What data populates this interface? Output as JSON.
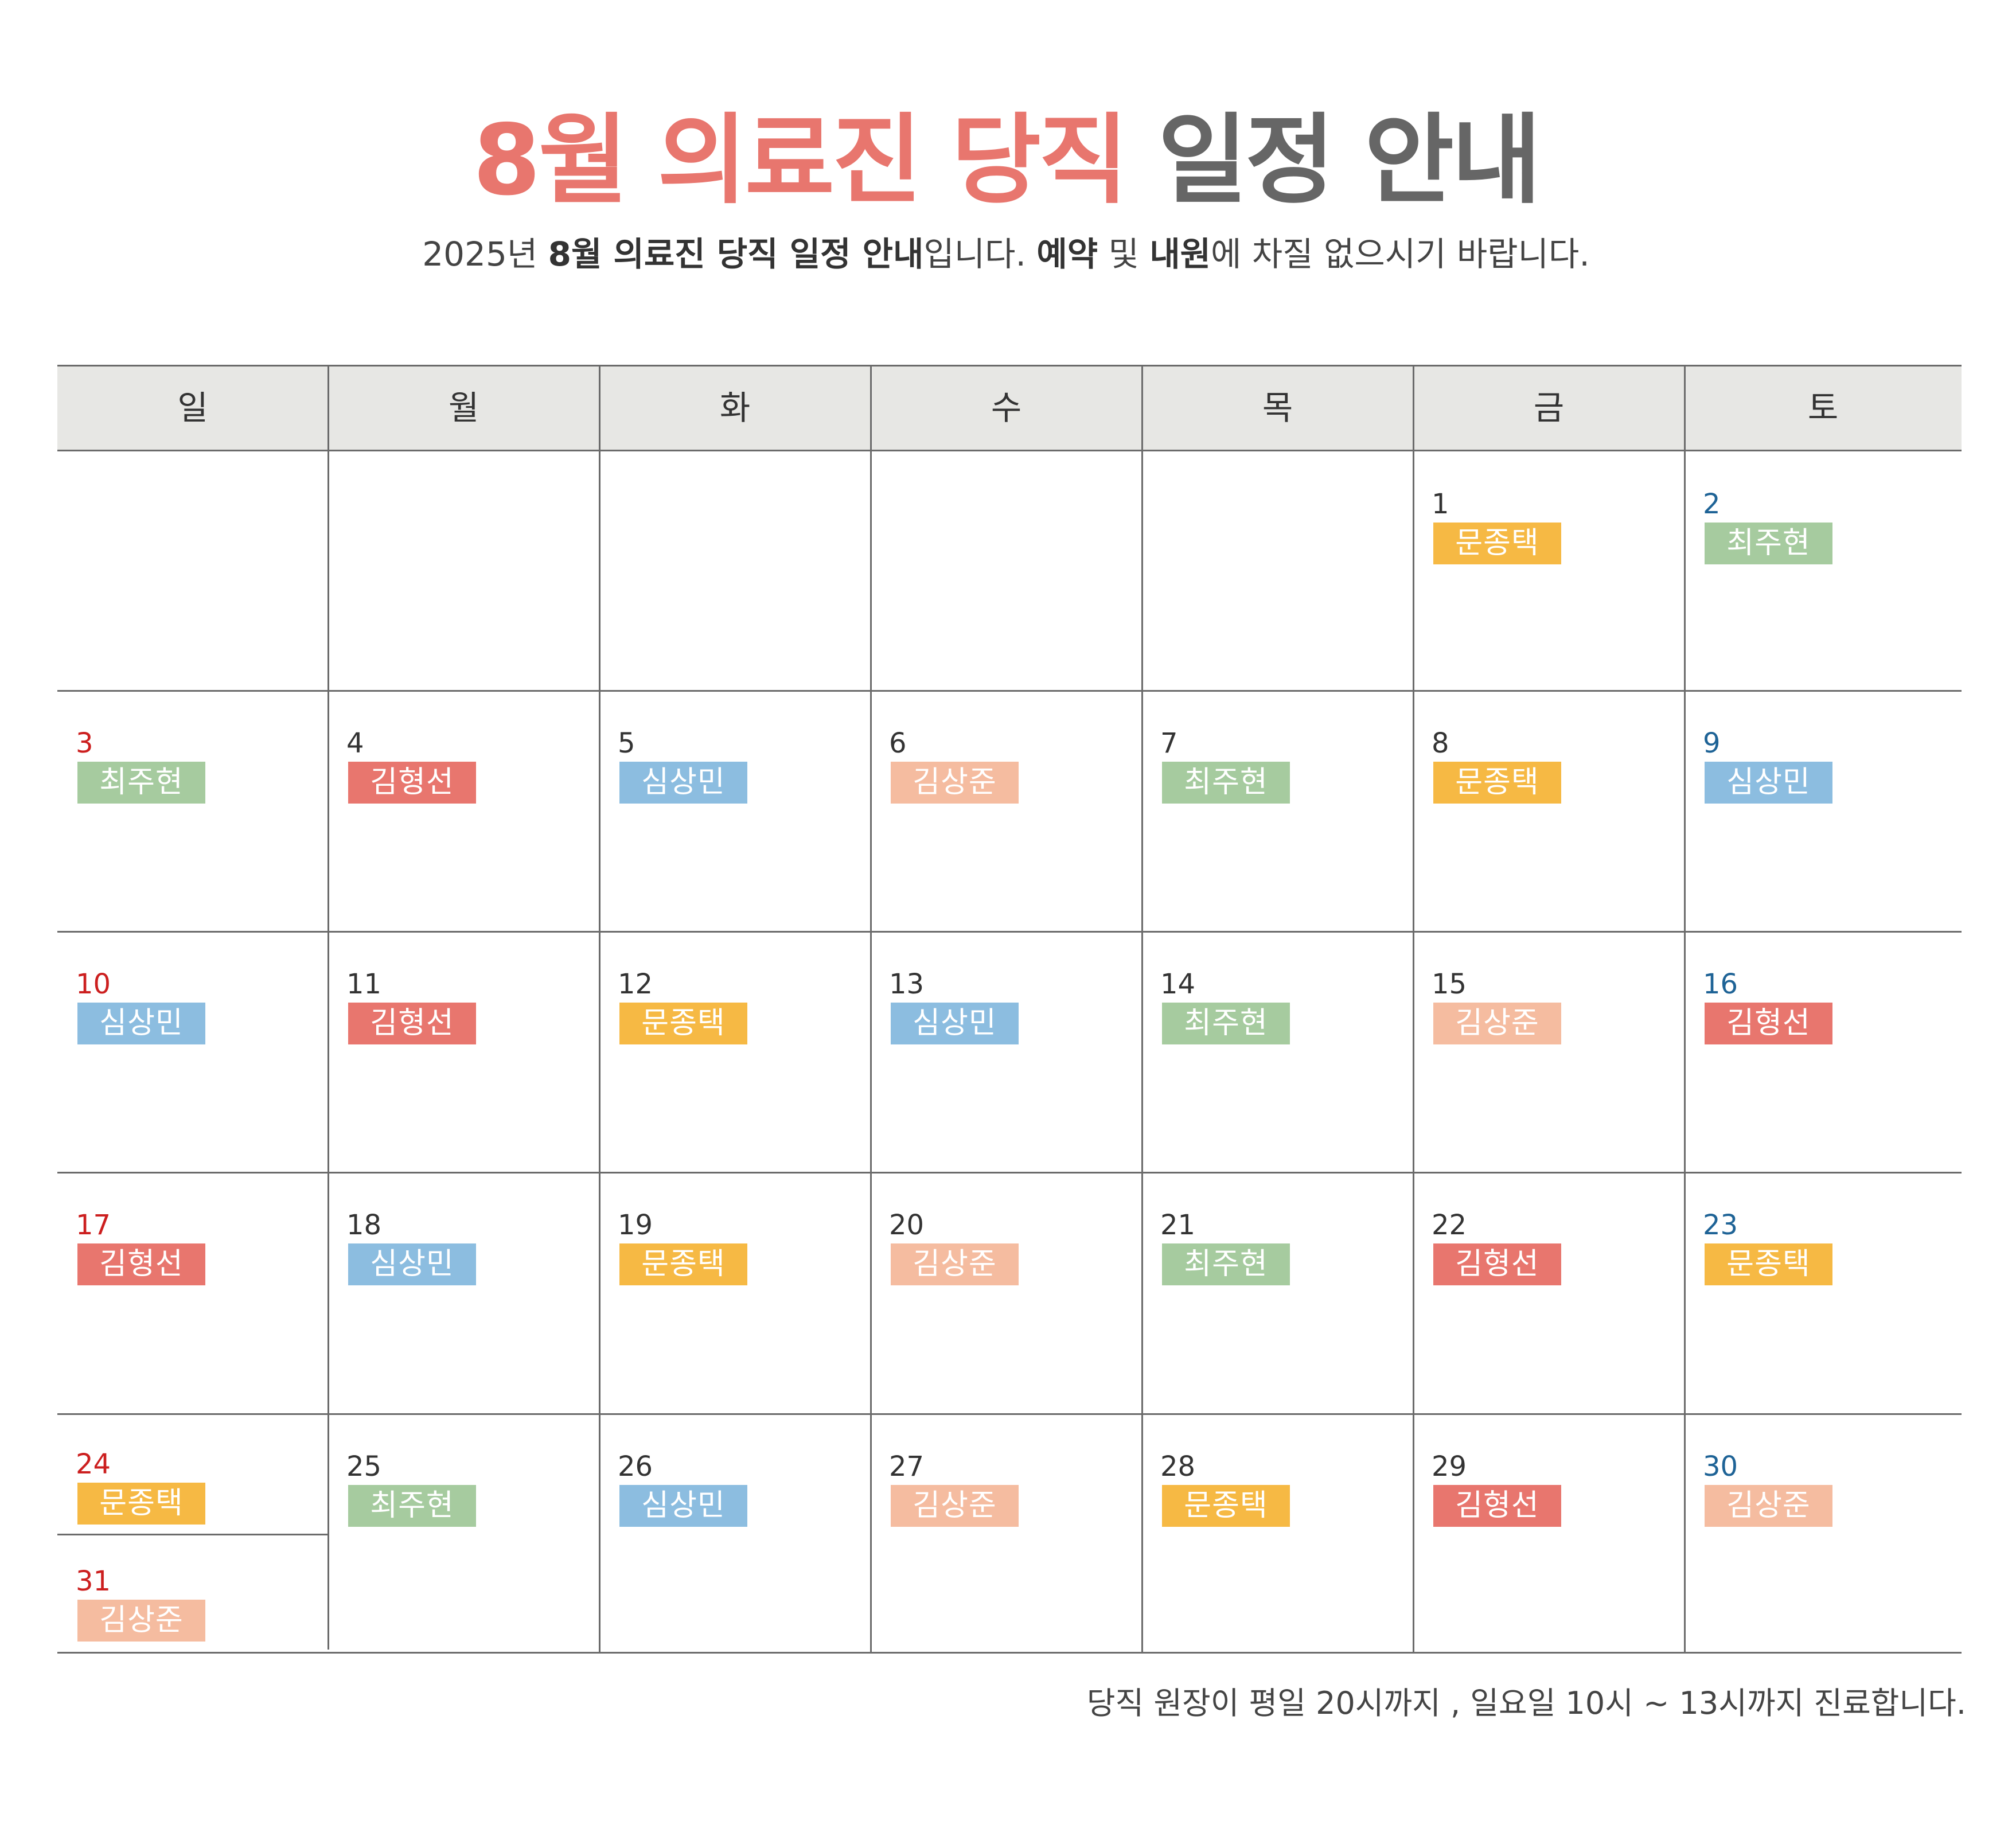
{
  "title": {
    "highlight": "8월 의료진 당직",
    "rest": "일정 안내"
  },
  "subtitle": {
    "p1": "2025년 ",
    "b1": "8월 의료진 당직 일정 안내",
    "p2": "입니다. ",
    "b2": "예약",
    "p3": " 및 ",
    "b3": "내원",
    "p4": "에 차질 없으시기 바랍니다."
  },
  "weekdays": [
    "일",
    "월",
    "화",
    "수",
    "목",
    "금",
    "토"
  ],
  "colors": {
    "title_highlight": "#e8766e",
    "title_dark": "#666666",
    "sunday": "#cc1f1f",
    "saturday": "#1e6396",
    "header_bg": "#e7e7e4",
    "문종택": "#f6b944",
    "최주현": "#a6cb9f",
    "김형선": "#e8766e",
    "심상민": "#8cbde0",
    "김상준": "#f5bca0"
  },
  "schedule": [
    {
      "day": "1",
      "doctor": "문종택"
    },
    {
      "day": "2",
      "doctor": "최주현"
    },
    {
      "day": "3",
      "doctor": "최주현"
    },
    {
      "day": "4",
      "doctor": "김형선"
    },
    {
      "day": "5",
      "doctor": "심상민"
    },
    {
      "day": "6",
      "doctor": "김상준"
    },
    {
      "day": "7",
      "doctor": "최주현"
    },
    {
      "day": "8",
      "doctor": "문종택"
    },
    {
      "day": "9",
      "doctor": "심상민"
    },
    {
      "day": "10",
      "doctor": "심상민"
    },
    {
      "day": "11",
      "doctor": "김형선"
    },
    {
      "day": "12",
      "doctor": "문종택"
    },
    {
      "day": "13",
      "doctor": "심상민"
    },
    {
      "day": "14",
      "doctor": "최주현"
    },
    {
      "day": "15",
      "doctor": "김상준"
    },
    {
      "day": "16",
      "doctor": "김형선"
    },
    {
      "day": "17",
      "doctor": "김형선"
    },
    {
      "day": "18",
      "doctor": "심상민"
    },
    {
      "day": "19",
      "doctor": "문종택"
    },
    {
      "day": "20",
      "doctor": "김상준"
    },
    {
      "day": "21",
      "doctor": "최주현"
    },
    {
      "day": "22",
      "doctor": "김형선"
    },
    {
      "day": "23",
      "doctor": "문종택"
    },
    {
      "day": "24",
      "doctor": "문종택"
    },
    {
      "day": "25",
      "doctor": "최주현"
    },
    {
      "day": "26",
      "doctor": "심상민"
    },
    {
      "day": "27",
      "doctor": "김상준"
    },
    {
      "day": "28",
      "doctor": "문종택"
    },
    {
      "day": "29",
      "doctor": "김형선"
    },
    {
      "day": "30",
      "doctor": "김상준"
    },
    {
      "day": "31",
      "doctor": "김상준"
    }
  ],
  "footer": "당직 원장이 평일 20시까지 , 일요일 10시 ~ 13시까지 진료합니다."
}
